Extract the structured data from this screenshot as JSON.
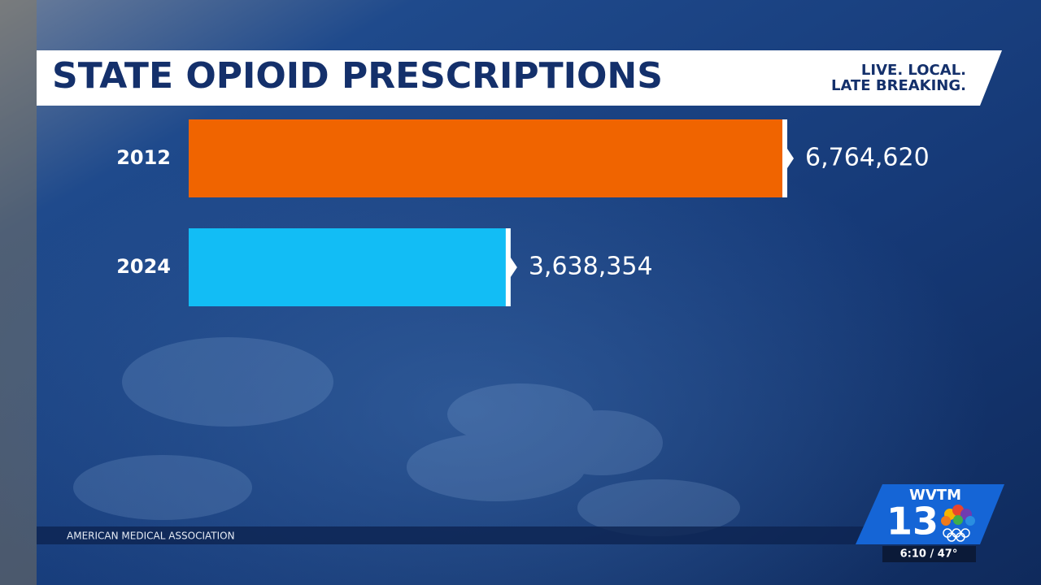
{
  "chart_data": {
    "type": "hbar",
    "title": "STATE OPIOID PRESCRIPTIONS",
    "categories": [
      "2012",
      "2024"
    ],
    "values": [
      6764620,
      3638354
    ],
    "value_labels": [
      "6,764,620",
      "3,638,354"
    ],
    "colors": [
      "#f06400",
      "#12bdf5"
    ]
  },
  "overlay": {
    "tagline": [
      "LIVE. LOCAL.",
      "LATE BREAKING."
    ],
    "source": "AMERICAN MEDICAL ASSOCIATION",
    "station": "WVTM",
    "channel": "13",
    "time_temp": "6:10 / 47°"
  }
}
